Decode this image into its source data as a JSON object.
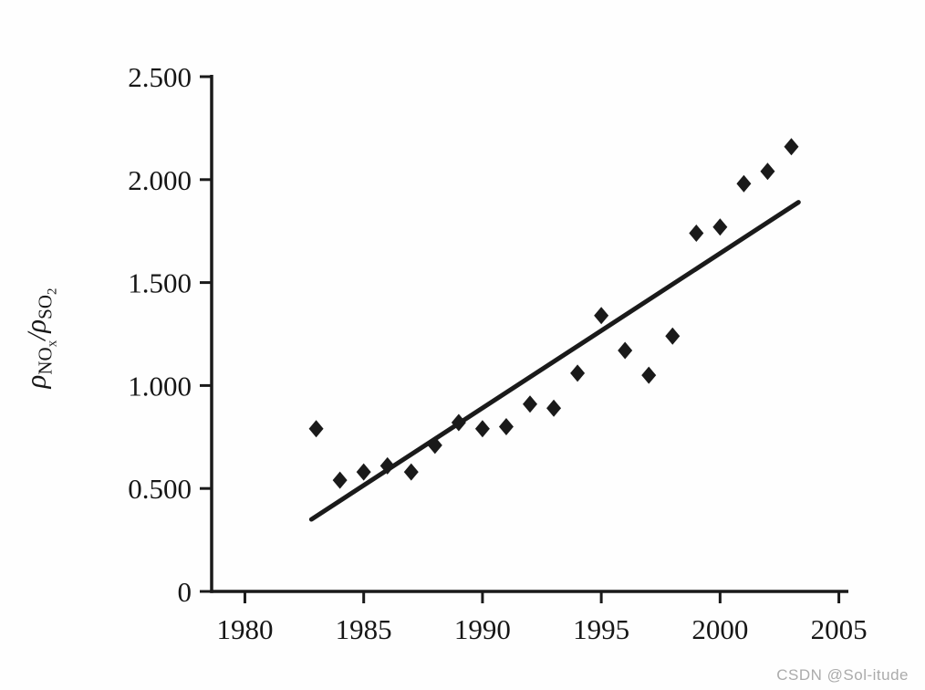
{
  "watermark": "CSDN @Sol-itude",
  "chart_data": {
    "type": "scatter",
    "title": "",
    "xlabel": "",
    "ylabel": "ρNOx/ρSO2",
    "ylabel_parts": {
      "rho1": "ρ",
      "sub1_main": "NO",
      "sub1_sub": "x",
      "slash": "/",
      "rho2": "ρ",
      "sub2_main": "SO",
      "sub2_sub": "2"
    },
    "xlim": [
      1978.6,
      2005.4
    ],
    "ylim": [
      0,
      2.5
    ],
    "x_ticks": [
      1980,
      1985,
      1990,
      1995,
      2000,
      2005
    ],
    "x_tick_labels": [
      "1980",
      "1985",
      "1990",
      "1995",
      "2000",
      "2005"
    ],
    "y_ticks": [
      0,
      0.5,
      1.0,
      1.5,
      2.0,
      2.5
    ],
    "y_tick_labels": [
      "0",
      "0.500",
      "1.000",
      "1.500",
      "2.000",
      "2.500"
    ],
    "grid": false,
    "legend": "none",
    "marker": "diamond",
    "color": "#1a1a1a",
    "points": [
      [
        1983,
        0.79
      ],
      [
        1984,
        0.54
      ],
      [
        1985,
        0.58
      ],
      [
        1986,
        0.61
      ],
      [
        1987,
        0.58
      ],
      [
        1988,
        0.71
      ],
      [
        1989,
        0.82
      ],
      [
        1990,
        0.79
      ],
      [
        1991,
        0.8
      ],
      [
        1992,
        0.91
      ],
      [
        1993,
        0.89
      ],
      [
        1994,
        1.06
      ],
      [
        1995,
        1.34
      ],
      [
        1996,
        1.17
      ],
      [
        1997,
        1.05
      ],
      [
        1998,
        1.24
      ],
      [
        1999,
        1.74
      ],
      [
        2000,
        1.77
      ],
      [
        2001,
        1.98
      ],
      [
        2002,
        2.04
      ],
      [
        2003,
        2.16
      ]
    ],
    "trend_line": {
      "x1": 1982.8,
      "y1": 0.35,
      "x2": 2003.3,
      "y2": 1.89
    }
  }
}
